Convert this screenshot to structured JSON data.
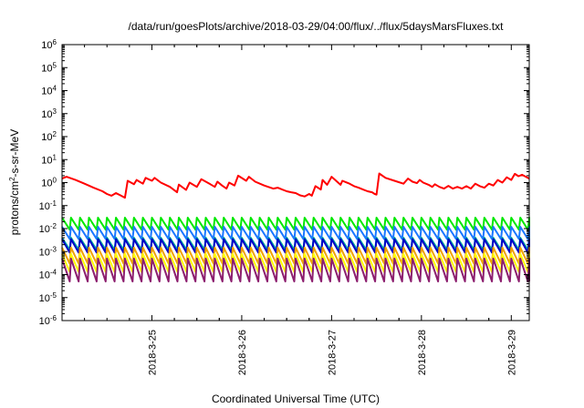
{
  "chart_data": {
    "type": "line",
    "title": "/data/run/goesPlots/archive/2018-03-29/04:00/flux/../flux/5daysMarsFluxes.txt",
    "xlabel": "Coordinated Universal Time (UTC)",
    "ylabel": {
      "prefix": "protons/cm",
      "sup": "2",
      "suffix": "-s-sr-MeV"
    },
    "y_scale": "log",
    "ylim_exp": [
      -6,
      6
    ],
    "y_ticks": [
      {
        "base": "10",
        "exp": "6"
      },
      {
        "base": "10",
        "exp": "5"
      },
      {
        "base": "10",
        "exp": "4"
      },
      {
        "base": "10",
        "exp": "3"
      },
      {
        "base": "10",
        "exp": "2"
      },
      {
        "base": "10",
        "exp": "1"
      },
      {
        "base": "10",
        "exp": "0"
      },
      {
        "base": "10",
        "exp": "-1"
      },
      {
        "base": "10",
        "exp": "-2"
      },
      {
        "base": "10",
        "exp": "-3"
      },
      {
        "base": "10",
        "exp": "-4"
      },
      {
        "base": "10",
        "exp": "-5"
      },
      {
        "base": "10",
        "exp": "-6"
      }
    ],
    "x_ticks": [
      "2018-3-25",
      "2018-3-26",
      "2018-3-27",
      "2018-3-28",
      "2018-3-29"
    ],
    "x_tick_days": [
      25,
      26,
      27,
      28,
      29
    ],
    "xlim_days": [
      24.0,
      29.2
    ],
    "grid": false,
    "legend": "none",
    "series": [
      {
        "color": "#ff0000",
        "points": [
          [
            24.0,
            1.5
          ],
          [
            24.05,
            1.8
          ],
          [
            24.15,
            1.3
          ],
          [
            24.25,
            0.9
          ],
          [
            24.35,
            0.6
          ],
          [
            24.45,
            0.42
          ],
          [
            24.5,
            0.32
          ],
          [
            24.55,
            0.27
          ],
          [
            24.6,
            0.35
          ],
          [
            24.65,
            0.28
          ],
          [
            24.7,
            0.22
          ],
          [
            24.73,
            1.2
          ],
          [
            24.8,
            0.85
          ],
          [
            24.83,
            1.3
          ],
          [
            24.9,
            0.9
          ],
          [
            24.93,
            1.6
          ],
          [
            25.0,
            1.2
          ],
          [
            25.03,
            1.6
          ],
          [
            25.1,
            1.0
          ],
          [
            25.2,
            0.65
          ],
          [
            25.28,
            0.38
          ],
          [
            25.3,
            0.82
          ],
          [
            25.38,
            0.48
          ],
          [
            25.42,
            1.0
          ],
          [
            25.5,
            0.65
          ],
          [
            25.55,
            1.4
          ],
          [
            25.65,
            0.85
          ],
          [
            25.7,
            0.65
          ],
          [
            25.73,
            1.1
          ],
          [
            25.78,
            0.75
          ],
          [
            25.83,
            0.55
          ],
          [
            25.86,
            1.0
          ],
          [
            25.92,
            0.75
          ],
          [
            25.96,
            2.0
          ],
          [
            26.05,
            1.2
          ],
          [
            26.08,
            1.8
          ],
          [
            26.15,
            1.1
          ],
          [
            26.25,
            0.75
          ],
          [
            26.35,
            0.55
          ],
          [
            26.4,
            0.6
          ],
          [
            26.45,
            0.5
          ],
          [
            26.5,
            0.42
          ],
          [
            26.55,
            0.38
          ],
          [
            26.6,
            0.35
          ],
          [
            26.65,
            0.28
          ],
          [
            26.7,
            0.25
          ],
          [
            26.75,
            0.32
          ],
          [
            26.78,
            0.27
          ],
          [
            26.82,
            0.7
          ],
          [
            26.88,
            0.5
          ],
          [
            26.9,
            1.3
          ],
          [
            26.95,
            0.8
          ],
          [
            27.0,
            1.8
          ],
          [
            27.05,
            1.2
          ],
          [
            27.1,
            0.8
          ],
          [
            27.12,
            1.2
          ],
          [
            27.2,
            0.9
          ],
          [
            27.25,
            0.7
          ],
          [
            27.3,
            0.6
          ],
          [
            27.35,
            0.5
          ],
          [
            27.4,
            0.42
          ],
          [
            27.45,
            0.38
          ],
          [
            27.48,
            0.32
          ],
          [
            27.5,
            0.3
          ],
          [
            27.53,
            2.5
          ],
          [
            27.6,
            1.6
          ],
          [
            27.7,
            1.2
          ],
          [
            27.8,
            0.9
          ],
          [
            27.85,
            1.5
          ],
          [
            27.9,
            1.1
          ],
          [
            27.95,
            0.95
          ],
          [
            27.98,
            1.3
          ],
          [
            28.02,
            1.0
          ],
          [
            28.08,
            0.8
          ],
          [
            28.12,
            0.65
          ],
          [
            28.15,
            0.85
          ],
          [
            28.2,
            0.65
          ],
          [
            28.25,
            0.55
          ],
          [
            28.3,
            0.72
          ],
          [
            28.35,
            0.55
          ],
          [
            28.4,
            0.65
          ],
          [
            28.45,
            0.55
          ],
          [
            28.5,
            0.7
          ],
          [
            28.55,
            0.55
          ],
          [
            28.6,
            0.9
          ],
          [
            28.65,
            0.7
          ],
          [
            28.7,
            0.6
          ],
          [
            28.75,
            0.9
          ],
          [
            28.8,
            0.75
          ],
          [
            28.85,
            1.3
          ],
          [
            28.9,
            1.0
          ],
          [
            28.95,
            1.7
          ],
          [
            29.0,
            1.3
          ],
          [
            29.04,
            2.4
          ],
          [
            29.08,
            1.9
          ],
          [
            29.12,
            2.2
          ],
          [
            29.2,
            1.5
          ]
        ]
      },
      {
        "color": "#00e800",
        "pattern": "sawtooth",
        "high": 0.03,
        "low": 0.009,
        "period_days": 0.1
      },
      {
        "color": "#1a78ff",
        "pattern": "sawtooth",
        "high": 0.012,
        "low": 0.0035,
        "period_days": 0.1
      },
      {
        "color": "#00b4a0",
        "pattern": "sawtooth",
        "high": 0.004,
        "low": 0.0012,
        "period_days": 0.1
      },
      {
        "color": "#0000c8",
        "pattern": "sawtooth",
        "high": 0.0035,
        "low": 0.0009,
        "period_days": 0.1
      },
      {
        "color": "#f0a000",
        "pattern": "sawtooth",
        "high": 0.0015,
        "low": 0.0003,
        "period_days": 0.1
      },
      {
        "color": "#ffff00",
        "pattern": "sawtooth",
        "high": 0.0008,
        "low": 0.00013,
        "period_days": 0.1
      },
      {
        "color": "#8c1e6e",
        "pattern": "sawtooth",
        "high": 0.0005,
        "low": 5e-05,
        "period_days": 0.1
      }
    ]
  }
}
